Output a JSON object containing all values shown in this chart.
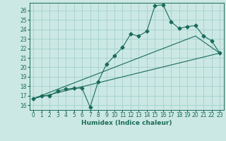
{
  "xlabel": "Humidex (Indice chaleur)",
  "bg_color": "#cce8e4",
  "grid_color": "#99cccc",
  "line_color": "#1a6b5a",
  "xlim": [
    -0.5,
    23.5
  ],
  "ylim": [
    15.5,
    26.8
  ],
  "xticks": [
    0,
    1,
    2,
    3,
    4,
    5,
    6,
    7,
    8,
    9,
    10,
    11,
    12,
    13,
    14,
    15,
    16,
    17,
    18,
    19,
    20,
    21,
    22,
    23
  ],
  "yticks": [
    16,
    17,
    18,
    19,
    20,
    21,
    22,
    23,
    24,
    25,
    26
  ],
  "series1_x": [
    0,
    1,
    2,
    3,
    4,
    5,
    6,
    7,
    8,
    9,
    10,
    11,
    12,
    13,
    14,
    15,
    16,
    17,
    18,
    19,
    20,
    21,
    22,
    23
  ],
  "series1_y": [
    16.7,
    17.0,
    17.0,
    17.5,
    17.7,
    17.8,
    17.8,
    15.8,
    18.5,
    20.3,
    21.2,
    22.1,
    23.5,
    23.3,
    23.8,
    26.5,
    26.6,
    24.8,
    24.1,
    24.3,
    24.4,
    23.3,
    22.8,
    21.5
  ],
  "series2_x": [
    0,
    23
  ],
  "series2_y": [
    16.7,
    21.5
  ],
  "series3_x": [
    0,
    20,
    23
  ],
  "series3_y": [
    16.7,
    23.3,
    21.5
  ],
  "marker_size": 2.5,
  "tick_fontsize": 5.5,
  "xlabel_fontsize": 6.5
}
